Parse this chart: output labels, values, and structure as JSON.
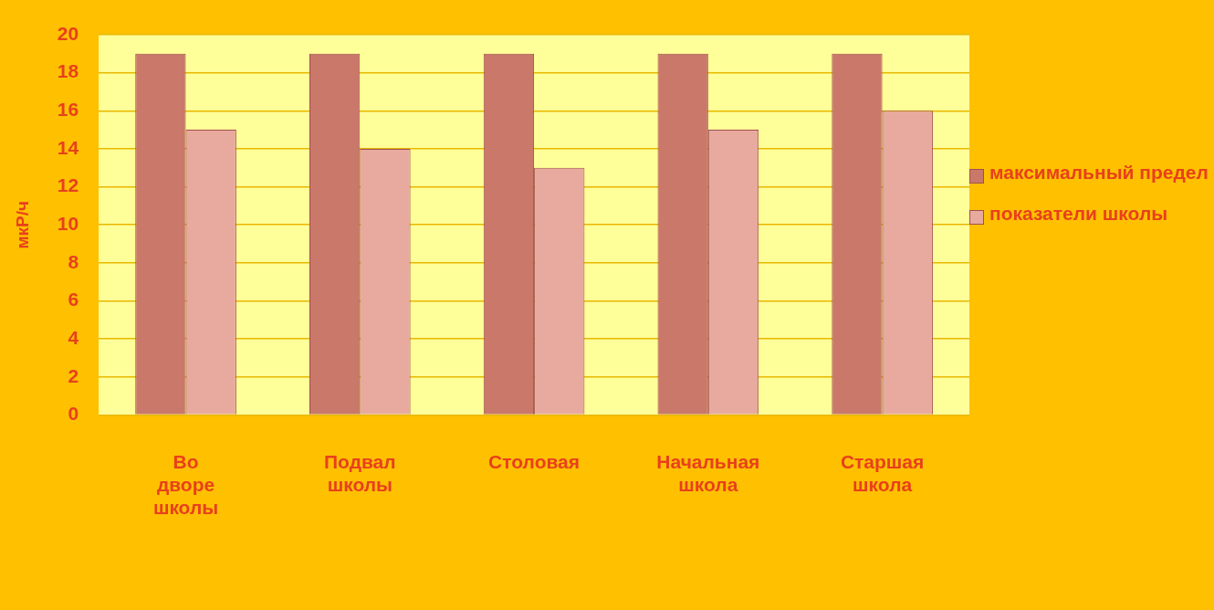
{
  "chart_data": {
    "type": "bar",
    "ylabel": "мкР/ч",
    "categories": [
      "Во дворе школы",
      "Подвал школы",
      "Столовая",
      "Начальная школа",
      "Старшая школа"
    ],
    "series": [
      {
        "name": "максимальный предел",
        "color": "#c9786a",
        "values": [
          19,
          19,
          19,
          19,
          19
        ]
      },
      {
        "name": "показатели школы",
        "color": "#e8aa9e",
        "values": [
          15,
          14,
          13,
          15,
          16
        ]
      }
    ],
    "ylim": [
      0,
      20
    ],
    "yticks": [
      0,
      2,
      4,
      6,
      8,
      10,
      12,
      14,
      16,
      18,
      20
    ],
    "grid": "y",
    "legend": "right"
  }
}
